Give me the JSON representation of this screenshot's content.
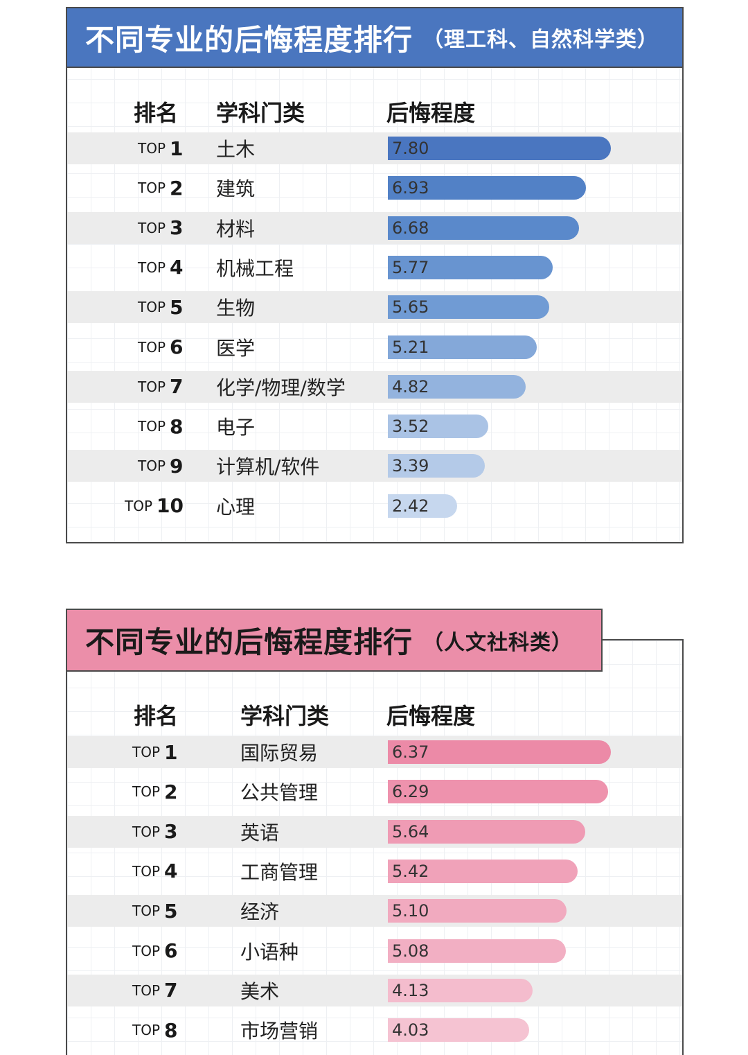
{
  "chart_data": [
    {
      "type": "bar",
      "orientation": "horizontal",
      "title": "不同专业的后悔程度排行",
      "subtitle": "（理工科、自然科学类）",
      "columns": [
        "排名",
        "学科门类",
        "后悔程度"
      ],
      "rank_prefix": "TOP",
      "ranks": [
        "1",
        "2",
        "3",
        "4",
        "5",
        "6",
        "7",
        "8",
        "9",
        "10"
      ],
      "categories": [
        "土木",
        "建筑",
        "材料",
        "机械工程",
        "生物",
        "医学",
        "化学/物理/数学",
        "电子",
        "计算机/软件",
        "心理"
      ],
      "values": [
        7.8,
        6.93,
        6.68,
        5.77,
        5.65,
        5.21,
        4.82,
        3.52,
        3.39,
        2.42
      ],
      "value_labels": [
        "7.80",
        "6.93",
        "6.68",
        "5.77",
        "5.65",
        "5.21",
        "4.82",
        "3.52",
        "3.39",
        "2.42"
      ],
      "bar_colors": [
        "#4a76c0",
        "#5281c6",
        "#5a89cb",
        "#6894d0",
        "#709bd4",
        "#84a8d9",
        "#93b3de",
        "#aac3e5",
        "#b4cae8",
        "#c6d7ee"
      ],
      "title_color": "#4a76bf",
      "xlim": [
        0,
        7.8
      ]
    },
    {
      "type": "bar",
      "orientation": "horizontal",
      "title": "不同专业的后悔程度排行",
      "subtitle": "（人文社科类）",
      "columns": [
        "排名",
        "学科门类",
        "后悔程度"
      ],
      "rank_prefix": "TOP",
      "ranks": [
        "1",
        "2",
        "3",
        "4",
        "5",
        "6",
        "7",
        "8"
      ],
      "categories": [
        "国际贸易",
        "公共管理",
        "英语",
        "工商管理",
        "经济",
        "小语种",
        "美术",
        "市场营销"
      ],
      "values": [
        6.37,
        6.29,
        5.64,
        5.42,
        5.1,
        5.08,
        4.13,
        4.03
      ],
      "value_labels": [
        "6.37",
        "6.29",
        "5.64",
        "5.42",
        "5.10",
        "5.08",
        "4.13",
        "4.03"
      ],
      "bar_colors": [
        "#ec8aa7",
        "#ee92ad",
        "#ef9bb4",
        "#f0a2b9",
        "#f1aabf",
        "#f2afc3",
        "#f4bccd",
        "#f5c3d2"
      ],
      "title_color": "#eb8ea9",
      "xlim": [
        0,
        6.37
      ]
    }
  ]
}
